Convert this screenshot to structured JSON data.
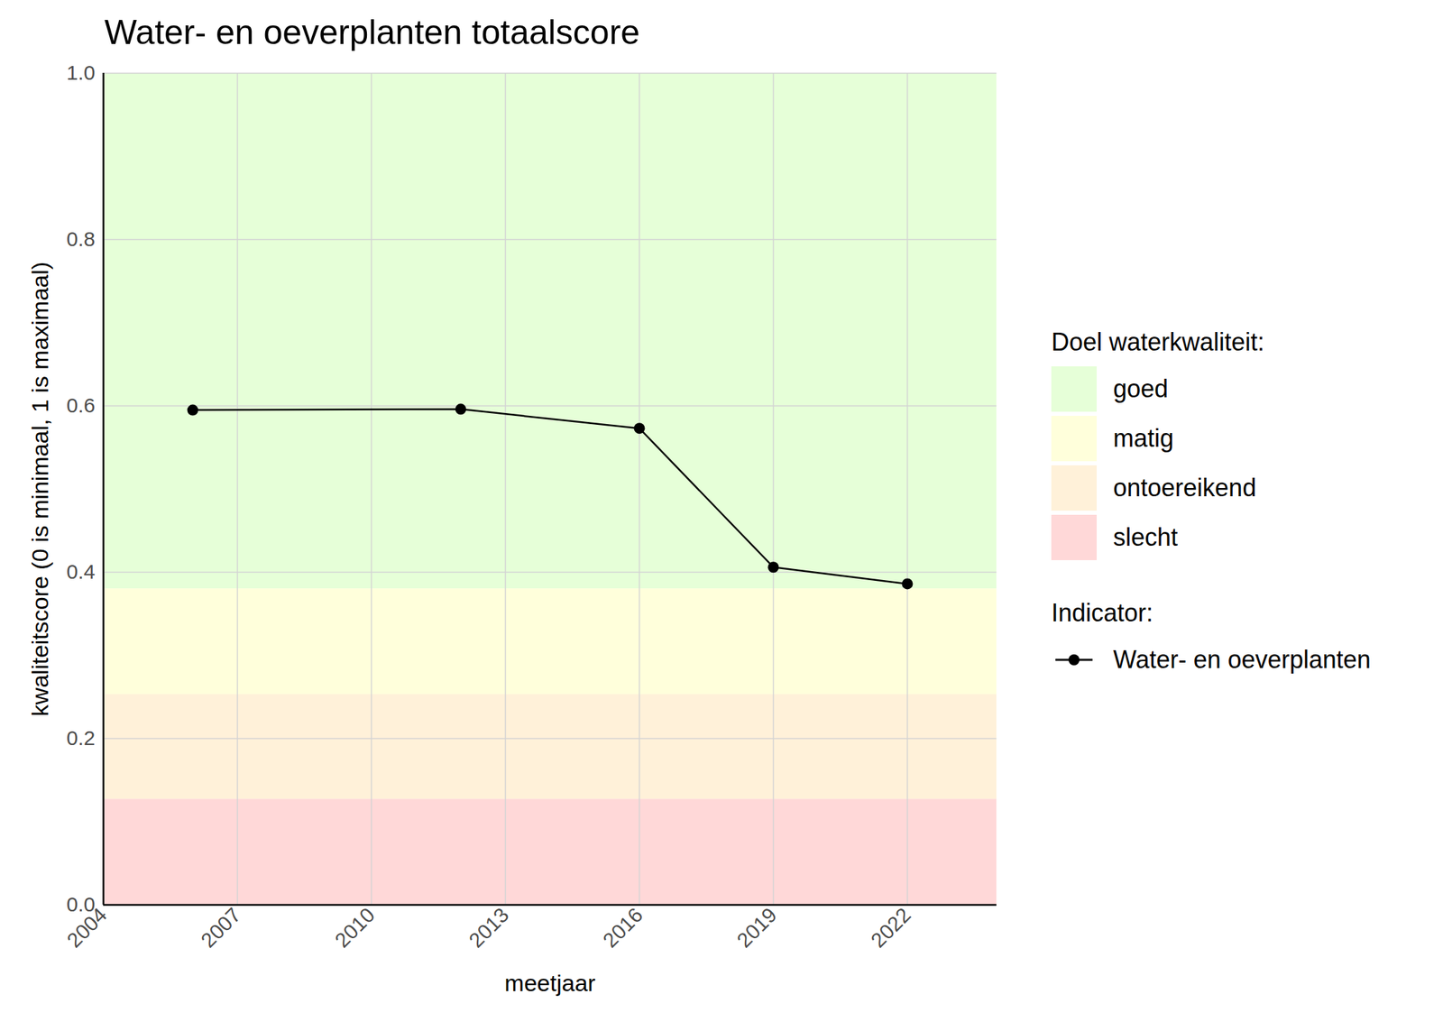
{
  "chart_data": {
    "type": "line",
    "title": "Water- en oeverplanten totaalscore",
    "x_label": "meetjaar",
    "y_label": "kwaliteitscore (0 is minimaal, 1 is maximaal)",
    "x": [
      2006,
      2012,
      2016,
      2019,
      2022
    ],
    "series": [
      {
        "name": "Water- en oeverplanten",
        "color": "#000000",
        "marker": "circle",
        "line_style": "solid",
        "values": [
          0.595,
          0.596,
          0.573,
          0.406,
          0.386
        ]
      }
    ],
    "xlim": [
      2004,
      2024
    ],
    "xticks": [
      2004,
      2007,
      2010,
      2013,
      2016,
      2019,
      2022
    ],
    "ylim": [
      0,
      1
    ],
    "yticks": [
      {
        "value": 0,
        "label": "0.0"
      },
      0.2,
      0.4,
      0.6,
      0.8,
      {
        "value": 1,
        "label": "1.0"
      }
    ],
    "grid": true,
    "legend": "right",
    "legend_titles": {
      "bands": "Doel waterkwaliteit:",
      "series": "Indicator:"
    },
    "bands": [
      {
        "name": "goed",
        "color": "#E6FFD8",
        "from": 0.38,
        "to": 1
      },
      {
        "name": "matig",
        "color": "#FFFFDB",
        "from": 0.253,
        "to": 0.38
      },
      {
        "name": "ontoereikend",
        "color": "#FFF1D9",
        "from": 0.127,
        "to": 0.253
      },
      {
        "name": "slecht",
        "color": "#FFD8D8",
        "from": 0,
        "to": 0.127
      }
    ]
  }
}
